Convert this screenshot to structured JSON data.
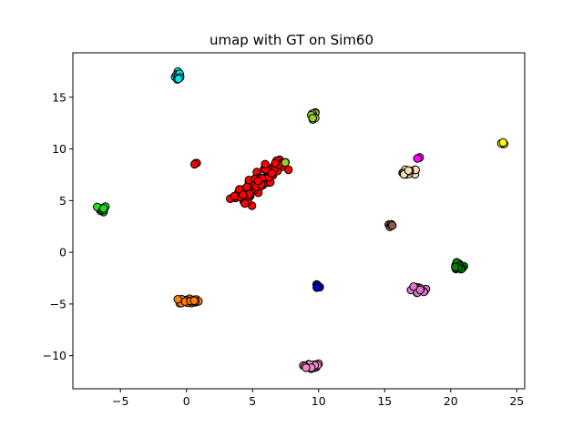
{
  "chart_data": {
    "type": "scatter",
    "title": "umap with GT on Sim60",
    "xlabel": "",
    "ylabel": "",
    "xlim": [
      -8.6,
      25.6
    ],
    "ylim": [
      -13.2,
      19.3
    ],
    "xticks": [
      -5,
      0,
      5,
      10,
      15,
      20,
      25
    ],
    "yticks": [
      -10,
      -5,
      0,
      5,
      10,
      15
    ],
    "grid": false,
    "legend": "none",
    "marker_edge_color": "#000000",
    "clusters": [
      {
        "color": "#00e5e5",
        "center": [
          -0.6,
          17.1
        ],
        "spread": [
          0.25,
          0.55
        ],
        "count": 14
      },
      {
        "color": "#9acd32",
        "center": [
          9.6,
          13.3
        ],
        "spread": [
          0.25,
          0.35
        ],
        "count": 8
      },
      {
        "color": "#ffff00",
        "center": [
          24.0,
          10.5
        ],
        "spread": [
          0.2,
          0.12
        ],
        "count": 4
      },
      {
        "color": "#ff0000",
        "center": [
          0.7,
          8.6
        ],
        "spread": [
          0.15,
          0.12
        ],
        "count": 3
      },
      {
        "color": "#ff00ff",
        "center": [
          17.6,
          9.1
        ],
        "spread": [
          0.15,
          0.12
        ],
        "count": 3
      },
      {
        "color": "#f5deb3",
        "center": [
          16.9,
          7.7
        ],
        "spread": [
          0.55,
          0.4
        ],
        "count": 16
      },
      {
        "color": "#22dd22",
        "center": [
          -6.4,
          4.2
        ],
        "spread": [
          0.35,
          0.3
        ],
        "count": 10
      },
      {
        "color": "#8b5a4a",
        "center": [
          15.4,
          2.6
        ],
        "spread": [
          0.25,
          0.18
        ],
        "count": 5
      },
      {
        "color": "#008000",
        "center": [
          20.6,
          -1.4
        ],
        "spread": [
          0.45,
          0.35
        ],
        "count": 14
      },
      {
        "color": "#0000cc",
        "center": [
          9.9,
          -3.3
        ],
        "spread": [
          0.18,
          0.25
        ],
        "count": 6
      },
      {
        "color": "#dd77cc",
        "center": [
          17.6,
          -3.7
        ],
        "spread": [
          0.7,
          0.35
        ],
        "count": 18
      },
      {
        "color": "#ff7f0e",
        "center": [
          0.2,
          -4.7
        ],
        "spread": [
          0.75,
          0.3
        ],
        "count": 22
      },
      {
        "color": "#ee88cc",
        "center": [
          9.4,
          -11.0
        ],
        "spread": [
          0.8,
          0.3
        ],
        "count": 20
      },
      {
        "color": "#ff0000",
        "center": [
          5.8,
          7.6
        ],
        "spread": [
          1.0,
          0.7
        ],
        "count": 110,
        "shape": "diagonal"
      },
      {
        "color": "#9acd32",
        "center": [
          7.5,
          8.7
        ],
        "spread": [
          0.12,
          0.1
        ],
        "count": 2
      }
    ]
  }
}
